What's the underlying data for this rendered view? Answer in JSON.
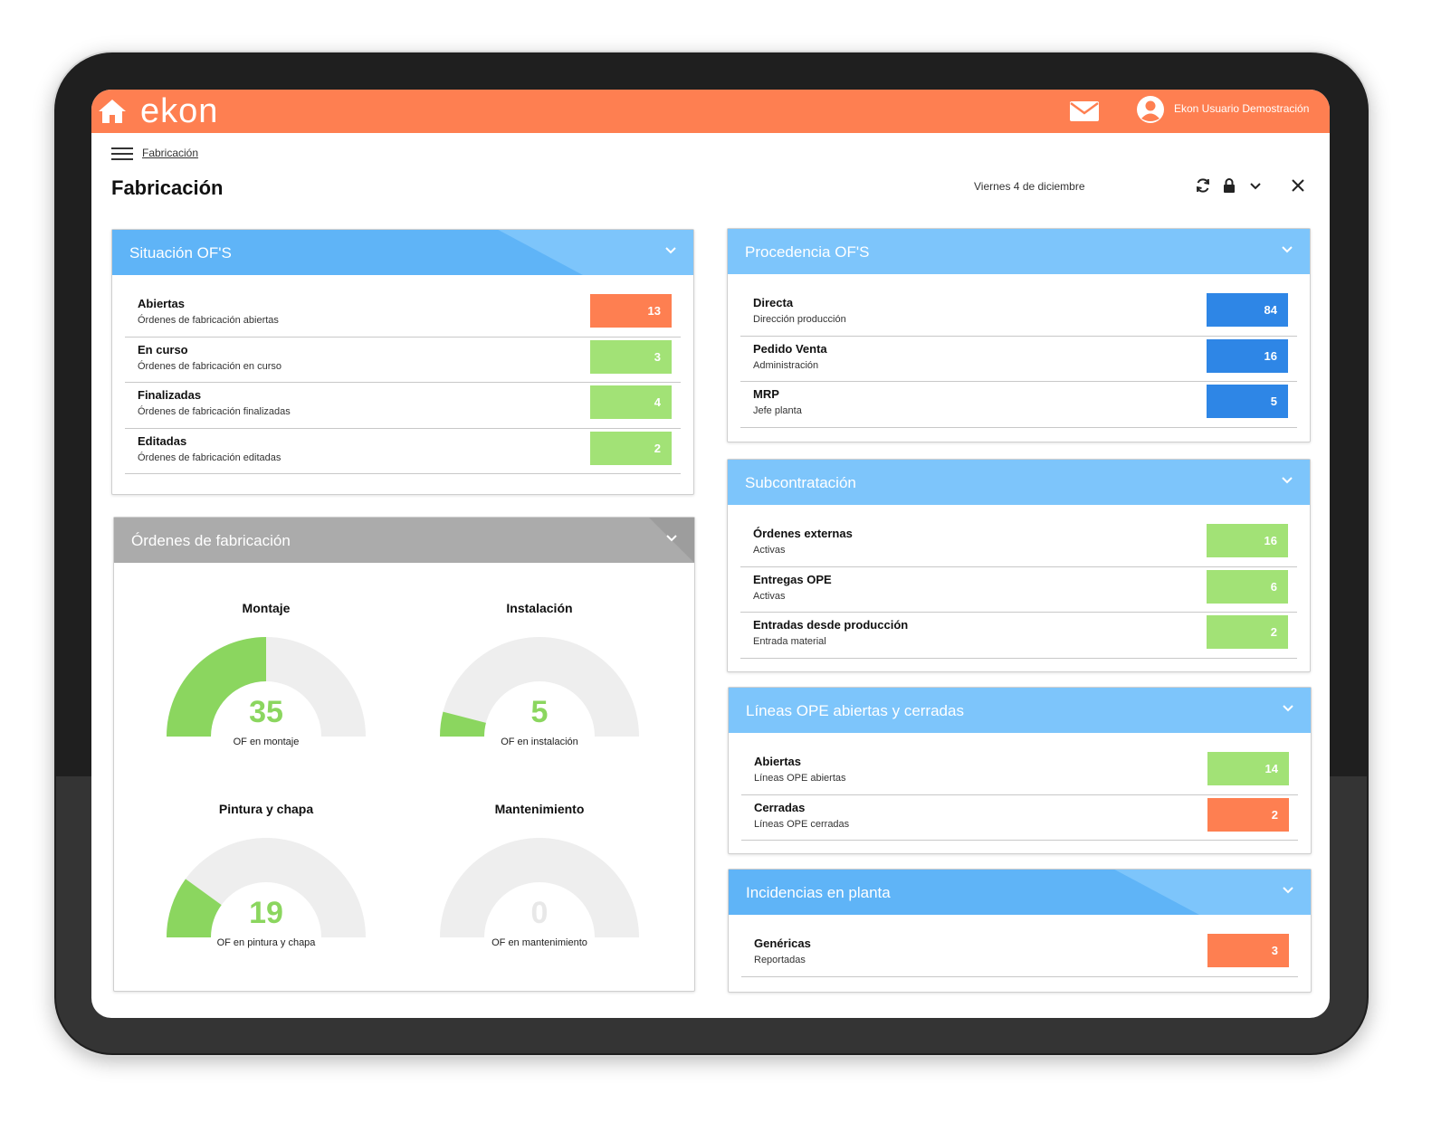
{
  "app": {
    "logo": "ekon",
    "user_name": "Ekon Usuario Demostración",
    "breadcrumb": "Fabricación",
    "title": "Fabricación",
    "date": "Viernes 4 de diciembre"
  },
  "colors": {
    "topbar": "#fe7f51",
    "orange_badge": "#fe7f51",
    "green_badge": "#a2e276",
    "blue_badge": "#2e86e6",
    "gauge_fill": "#8bd65f",
    "gauge_track": "#eeeeee"
  },
  "icons": [
    "home-icon",
    "mail-icon",
    "user-avatar-icon",
    "menu-icon",
    "refresh-icon",
    "lock-icon",
    "chevron-down-icon",
    "close-icon"
  ],
  "situacion": {
    "title": "Situación OF'S",
    "rows": [
      {
        "title": "Abiertas",
        "sub": "Órdenes de fabricación abiertas",
        "value": "13",
        "color": "orange"
      },
      {
        "title": "En curso",
        "sub": "Órdenes de fabricación en curso",
        "value": "3",
        "color": "green"
      },
      {
        "title": "Finalizadas",
        "sub": "Órdenes de fabricación finalizadas",
        "value": "4",
        "color": "green"
      },
      {
        "title": "Editadas",
        "sub": "Órdenes de fabricación editadas",
        "value": "2",
        "color": "green"
      }
    ]
  },
  "ordenes": {
    "title": "Órdenes de fabricación",
    "gauges": [
      {
        "title": "Montaje",
        "value": "35",
        "caption": "OF en montaje",
        "fraction": 0.5
      },
      {
        "title": "Instalación",
        "value": "5",
        "caption": "OF en instalación",
        "fraction": 0.08
      },
      {
        "title": "Pintura y chapa",
        "value": "19",
        "caption": "OF en pintura y chapa",
        "fraction": 0.2
      },
      {
        "title": "Mantenimiento",
        "value": "0",
        "caption": "OF en mantenimiento",
        "fraction": 0
      }
    ]
  },
  "procedencia": {
    "title": "Procedencia OF'S",
    "rows": [
      {
        "title": "Directa",
        "sub": "Dirección producción",
        "value": "84",
        "color": "blue"
      },
      {
        "title": "Pedido Venta",
        "sub": "Administración",
        "value": "16",
        "color": "blue"
      },
      {
        "title": "MRP",
        "sub": "Jefe planta",
        "value": "5",
        "color": "blue"
      }
    ]
  },
  "subcontratacion": {
    "title": "Subcontratación",
    "rows": [
      {
        "title": "Órdenes externas",
        "sub": "Activas",
        "value": "16",
        "color": "green"
      },
      {
        "title": "Entregas OPE",
        "sub": "Activas",
        "value": "6",
        "color": "green"
      },
      {
        "title": "Entradas desde producción",
        "sub": "Entrada material",
        "value": "2",
        "color": "green"
      }
    ]
  },
  "lineas": {
    "title": "Líneas OPE abiertas y cerradas",
    "rows": [
      {
        "title": "Abiertas",
        "sub": "Líneas OPE abiertas",
        "value": "14",
        "color": "green"
      },
      {
        "title": "Cerradas",
        "sub": "Líneas OPE cerradas",
        "value": "2",
        "color": "orange"
      }
    ]
  },
  "incidencias": {
    "title": "Incidencias en planta",
    "rows": [
      {
        "title": "Genéricas",
        "sub": "Reportadas",
        "value": "3",
        "color": "orange"
      }
    ]
  }
}
